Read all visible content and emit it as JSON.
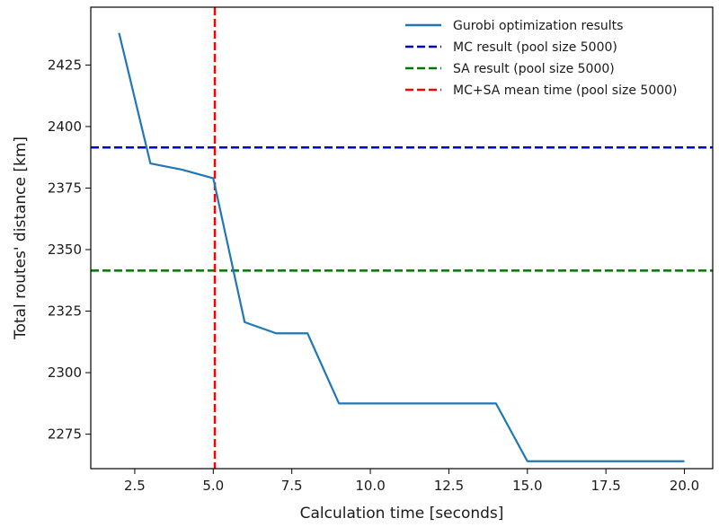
{
  "chart_data": {
    "type": "line",
    "title": "",
    "xlabel": "Calculation time [seconds]",
    "ylabel": "Total routes' distance [km]",
    "xlim": [
      1.1,
      20.9
    ],
    "ylim": [
      2261,
      2448.5
    ],
    "xticks": [
      2.5,
      5.0,
      7.5,
      10.0,
      12.5,
      15.0,
      17.5,
      20.0
    ],
    "xtick_labels": [
      "2.5",
      "5.0",
      "7.5",
      "10.0",
      "12.5",
      "15.0",
      "17.5",
      "20.0"
    ],
    "yticks": [
      2275,
      2300,
      2325,
      2350,
      2375,
      2400,
      2425
    ],
    "ytick_labels": [
      "2275",
      "2300",
      "2325",
      "2350",
      "2375",
      "2400",
      "2425"
    ],
    "grid": false,
    "legend_position": "top-right",
    "series": [
      {
        "name": "Gurobi optimization results",
        "style": "solid",
        "color": "#1f77b4",
        "x": [
          2,
          3,
          4,
          5,
          6,
          7,
          8,
          9,
          10,
          11,
          12,
          13,
          14,
          15,
          16,
          17,
          18,
          19,
          20
        ],
        "y": [
          2438,
          2385,
          2382.5,
          2379,
          2320.5,
          2316,
          2316,
          2287.5,
          2287.5,
          2287.5,
          2287.5,
          2287.5,
          2287.5,
          2264,
          2264,
          2264,
          2264,
          2264,
          2264
        ]
      }
    ],
    "reference_lines": [
      {
        "name": "MC result (pool size 5000)",
        "orientation": "horizontal",
        "value": 2391.5,
        "color": "#0000cc",
        "style": "dashed"
      },
      {
        "name": "SA result (pool size 5000)",
        "orientation": "horizontal",
        "value": 2341.5,
        "color": "#007700",
        "style": "dashed"
      },
      {
        "name": "MC+SA mean time (pool size 5000)",
        "orientation": "vertical",
        "value": 5.05,
        "color": "#ff0000",
        "style": "dashed"
      }
    ]
  }
}
